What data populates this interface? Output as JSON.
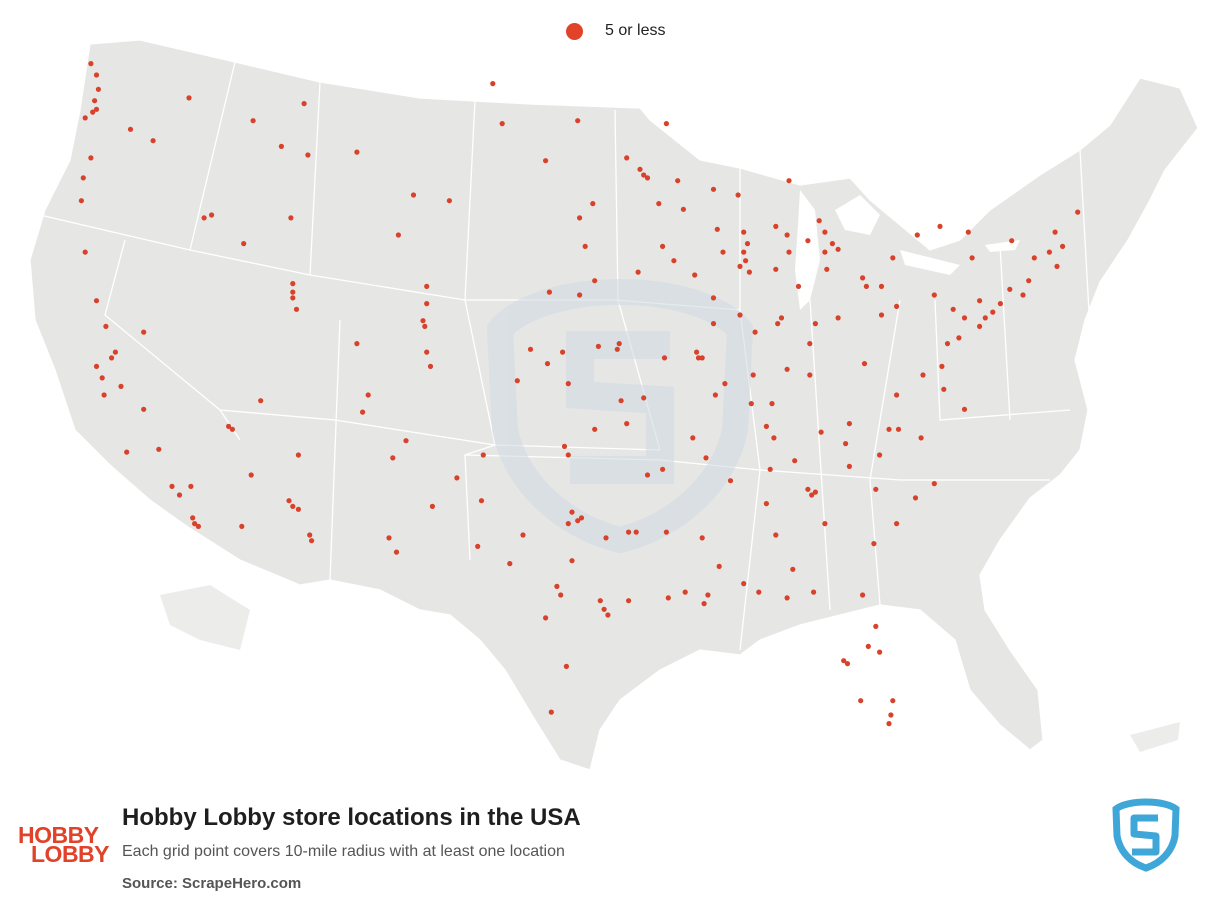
{
  "legend": {
    "label": "5 or less",
    "color": "#e0432a"
  },
  "title": "Hobby Lobby store locations in the USA",
  "subtitle": "Each grid point covers 10-mile radius with at least one location",
  "source": {
    "label": "Source:",
    "value": "ScrapeHero.com"
  },
  "logo": {
    "line1": "HOBBY",
    "line2": "LOBBY",
    "color": "#e0432a"
  },
  "colors": {
    "land": "#e6e6e5",
    "border": "#ffffff",
    "dot": "#d8412a",
    "watermark": "#cfdbe3",
    "brand_blue": "#3fa6d8"
  },
  "map_markers": [
    {
      "lon": -122.6,
      "lat": 48.9
    },
    {
      "lon": -122.3,
      "lat": 48.5
    },
    {
      "lon": -122.2,
      "lat": 48.0
    },
    {
      "lon": -122.4,
      "lat": 47.6
    },
    {
      "lon": -122.3,
      "lat": 47.3
    },
    {
      "lon": -122.5,
      "lat": 47.2
    },
    {
      "lon": -122.9,
      "lat": 47.0
    },
    {
      "lon": -122.6,
      "lat": 45.6
    },
    {
      "lon": -123.0,
      "lat": 44.9
    },
    {
      "lon": -123.1,
      "lat": 44.1
    },
    {
      "lon": -122.9,
      "lat": 42.3
    },
    {
      "lon": -117.4,
      "lat": 47.7
    },
    {
      "lon": -119.3,
      "lat": 46.2
    },
    {
      "lon": -120.5,
      "lat": 46.6
    },
    {
      "lon": -116.2,
      "lat": 43.6
    },
    {
      "lon": -116.6,
      "lat": 43.5
    },
    {
      "lon": -112.0,
      "lat": 43.5
    },
    {
      "lon": -114.5,
      "lat": 42.6
    },
    {
      "lon": -111.9,
      "lat": 41.2
    },
    {
      "lon": -111.9,
      "lat": 40.7
    },
    {
      "lon": -111.7,
      "lat": 40.3
    },
    {
      "lon": -111.9,
      "lat": 40.9
    },
    {
      "lon": -113.6,
      "lat": 37.1
    },
    {
      "lon": -114.0,
      "lat": 46.9
    },
    {
      "lon": -111.1,
      "lat": 45.7
    },
    {
      "lon": -108.5,
      "lat": 45.8
    },
    {
      "lon": -112.5,
      "lat": 46.0
    },
    {
      "lon": -111.3,
      "lat": 47.5
    },
    {
      "lon": -100.8,
      "lat": 46.8
    },
    {
      "lon": -96.8,
      "lat": 46.9
    },
    {
      "lon": -101.3,
      "lat": 48.2
    },
    {
      "lon": -103.6,
      "lat": 44.1
    },
    {
      "lon": -96.7,
      "lat": 43.5
    },
    {
      "lon": -98.5,
      "lat": 45.5
    },
    {
      "lon": -104.8,
      "lat": 41.1
    },
    {
      "lon": -106.3,
      "lat": 42.9
    },
    {
      "lon": -105.5,
      "lat": 44.3
    },
    {
      "lon": -104.8,
      "lat": 40.5
    },
    {
      "lon": -104.9,
      "lat": 39.7
    },
    {
      "lon": -105.0,
      "lat": 39.9
    },
    {
      "lon": -104.8,
      "lat": 38.8
    },
    {
      "lon": -104.6,
      "lat": 38.3
    },
    {
      "lon": -108.5,
      "lat": 39.1
    },
    {
      "lon": -107.9,
      "lat": 37.3
    },
    {
      "lon": -106.6,
      "lat": 35.1
    },
    {
      "lon": -106.8,
      "lat": 32.3
    },
    {
      "lon": -103.2,
      "lat": 34.4
    },
    {
      "lon": -108.2,
      "lat": 36.7
    },
    {
      "lon": -105.9,
      "lat": 35.7
    },
    {
      "lon": -104.5,
      "lat": 33.4
    },
    {
      "lon": -111.9,
      "lat": 33.4
    },
    {
      "lon": -112.1,
      "lat": 33.6
    },
    {
      "lon": -111.6,
      "lat": 33.3
    },
    {
      "lon": -110.9,
      "lat": 32.2
    },
    {
      "lon": -111.0,
      "lat": 32.4
    },
    {
      "lon": -111.6,
      "lat": 35.2
    },
    {
      "lon": -114.6,
      "lat": 32.7
    },
    {
      "lon": -114.1,
      "lat": 34.5
    },
    {
      "lon": -115.1,
      "lat": 36.1
    },
    {
      "lon": -115.3,
      "lat": 36.2
    },
    {
      "lon": -119.8,
      "lat": 39.5
    },
    {
      "lon": -121.5,
      "lat": 38.6
    },
    {
      "lon": -121.3,
      "lat": 38.8
    },
    {
      "lon": -122.0,
      "lat": 37.9
    },
    {
      "lon": -121.9,
      "lat": 37.3
    },
    {
      "lon": -122.3,
      "lat": 38.3
    },
    {
      "lon": -121.0,
      "lat": 37.6
    },
    {
      "lon": -119.8,
      "lat": 36.8
    },
    {
      "lon": -119.0,
      "lat": 35.4
    },
    {
      "lon": -118.3,
      "lat": 34.1
    },
    {
      "lon": -117.9,
      "lat": 33.8
    },
    {
      "lon": -117.3,
      "lat": 34.1
    },
    {
      "lon": -117.2,
      "lat": 33.0
    },
    {
      "lon": -117.1,
      "lat": 32.8
    },
    {
      "lon": -116.9,
      "lat": 32.7
    },
    {
      "lon": -122.3,
      "lat": 40.6
    },
    {
      "lon": -121.8,
      "lat": 39.7
    },
    {
      "lon": -120.7,
      "lat": 35.3
    },
    {
      "lon": -97.5,
      "lat": 35.5
    },
    {
      "lon": -97.3,
      "lat": 35.2
    },
    {
      "lon": -95.9,
      "lat": 36.1
    },
    {
      "lon": -97.1,
      "lat": 33.2
    },
    {
      "lon": -96.8,
      "lat": 32.9
    },
    {
      "lon": -97.3,
      "lat": 32.8
    },
    {
      "lon": -96.6,
      "lat": 33.0
    },
    {
      "lon": -95.3,
      "lat": 32.3
    },
    {
      "lon": -94.1,
      "lat": 32.5
    },
    {
      "lon": -95.4,
      "lat": 29.8
    },
    {
      "lon": -95.6,
      "lat": 30.1
    },
    {
      "lon": -95.2,
      "lat": 29.6
    },
    {
      "lon": -94.1,
      "lat": 30.1
    },
    {
      "lon": -97.7,
      "lat": 30.3
    },
    {
      "lon": -97.9,
      "lat": 30.6
    },
    {
      "lon": -98.5,
      "lat": 29.5
    },
    {
      "lon": -97.4,
      "lat": 27.8
    },
    {
      "lon": -98.2,
      "lat": 26.2
    },
    {
      "lon": -101.9,
      "lat": 33.6
    },
    {
      "lon": -101.8,
      "lat": 35.2
    },
    {
      "lon": -99.7,
      "lat": 32.4
    },
    {
      "lon": -106.4,
      "lat": 31.8
    },
    {
      "lon": -102.1,
      "lat": 32.0
    },
    {
      "lon": -100.4,
      "lat": 31.4
    },
    {
      "lon": -97.1,
      "lat": 31.5
    },
    {
      "lon": -93.7,
      "lat": 32.5
    },
    {
      "lon": -92.0,
      "lat": 30.2
    },
    {
      "lon": -91.1,
      "lat": 30.4
    },
    {
      "lon": -90.1,
      "lat": 30.0
    },
    {
      "lon": -89.9,
      "lat": 30.3
    },
    {
      "lon": -92.1,
      "lat": 32.5
    },
    {
      "lon": -92.3,
      "lat": 34.7
    },
    {
      "lon": -94.2,
      "lat": 36.3
    },
    {
      "lon": -90.7,
      "lat": 35.8
    },
    {
      "lon": -93.1,
      "lat": 34.5
    },
    {
      "lon": -90.2,
      "lat": 32.3
    },
    {
      "lon": -89.3,
      "lat": 31.3
    },
    {
      "lon": -88.7,
      "lat": 34.3
    },
    {
      "lon": -88.0,
      "lat": 30.7
    },
    {
      "lon": -86.8,
      "lat": 33.5
    },
    {
      "lon": -86.6,
      "lat": 34.7
    },
    {
      "lon": -86.3,
      "lat": 32.4
    },
    {
      "lon": -85.4,
      "lat": 31.2
    },
    {
      "lon": -84.4,
      "lat": 33.8
    },
    {
      "lon": -84.2,
      "lat": 33.9
    },
    {
      "lon": -84.6,
      "lat": 34.0
    },
    {
      "lon": -83.7,
      "lat": 32.8
    },
    {
      "lon": -81.1,
      "lat": 32.1
    },
    {
      "lon": -84.3,
      "lat": 30.4
    },
    {
      "lon": -81.7,
      "lat": 30.3
    },
    {
      "lon": -81.4,
      "lat": 28.5
    },
    {
      "lon": -82.5,
      "lat": 27.9
    },
    {
      "lon": -82.7,
      "lat": 28.0
    },
    {
      "lon": -81.8,
      "lat": 26.6
    },
    {
      "lon": -80.2,
      "lat": 26.1
    },
    {
      "lon": -80.1,
      "lat": 26.6
    },
    {
      "lon": -80.3,
      "lat": 25.8
    },
    {
      "lon": -81.0,
      "lat": 29.2
    },
    {
      "lon": -80.8,
      "lat": 28.3
    },
    {
      "lon": -87.2,
      "lat": 30.4
    },
    {
      "lon": -85.7,
      "lat": 30.2
    },
    {
      "lon": -90.0,
      "lat": 35.1
    },
    {
      "lon": -86.8,
      "lat": 36.2
    },
    {
      "lon": -86.4,
      "lat": 35.8
    },
    {
      "lon": -85.3,
      "lat": 35.0
    },
    {
      "lon": -83.9,
      "lat": 36.0
    },
    {
      "lon": -82.4,
      "lat": 36.3
    },
    {
      "lon": -85.7,
      "lat": 38.2
    },
    {
      "lon": -84.5,
      "lat": 38.0
    },
    {
      "lon": -86.5,
      "lat": 37.0
    },
    {
      "lon": -87.6,
      "lat": 37.0
    },
    {
      "lon": -80.8,
      "lat": 35.2
    },
    {
      "lon": -80.3,
      "lat": 36.1
    },
    {
      "lon": -79.8,
      "lat": 36.1
    },
    {
      "lon": -78.6,
      "lat": 35.8
    },
    {
      "lon": -77.9,
      "lat": 34.2
    },
    {
      "lon": -82.6,
      "lat": 35.6
    },
    {
      "lon": -81.0,
      "lat": 34.0
    },
    {
      "lon": -82.4,
      "lat": 34.8
    },
    {
      "lon": -79.9,
      "lat": 32.8
    },
    {
      "lon": -78.9,
      "lat": 33.7
    },
    {
      "lon": -77.4,
      "lat": 37.5
    },
    {
      "lon": -76.3,
      "lat": 36.8
    },
    {
      "lon": -79.9,
      "lat": 37.3
    },
    {
      "lon": -77.5,
      "lat": 38.3
    },
    {
      "lon": -78.5,
      "lat": 38.0
    },
    {
      "lon": -81.6,
      "lat": 38.4
    },
    {
      "lon": -80.7,
      "lat": 40.1
    },
    {
      "lon": -79.9,
      "lat": 40.4
    },
    {
      "lon": -77.9,
      "lat": 40.8
    },
    {
      "lon": -76.9,
      "lat": 40.3
    },
    {
      "lon": -75.5,
      "lat": 40.6
    },
    {
      "lon": -75.2,
      "lat": 40.0
    },
    {
      "lon": -76.3,
      "lat": 40.0
    },
    {
      "lon": -80.1,
      "lat": 42.1
    },
    {
      "lon": -76.6,
      "lat": 39.3
    },
    {
      "lon": -77.2,
      "lat": 39.1
    },
    {
      "lon": -75.5,
      "lat": 39.7
    },
    {
      "lon": -74.4,
      "lat": 40.5
    },
    {
      "lon": -74.8,
      "lat": 40.2
    },
    {
      "lon": -73.9,
      "lat": 41.0
    },
    {
      "lon": -73.2,
      "lat": 40.8
    },
    {
      "lon": -72.9,
      "lat": 41.3
    },
    {
      "lon": -73.8,
      "lat": 42.7
    },
    {
      "lon": -76.1,
      "lat": 43.0
    },
    {
      "lon": -77.6,
      "lat": 43.2
    },
    {
      "lon": -78.8,
      "lat": 42.9
    },
    {
      "lon": -75.9,
      "lat": 42.1
    },
    {
      "lon": -71.8,
      "lat": 42.3
    },
    {
      "lon": -71.1,
      "lat": 42.5
    },
    {
      "lon": -71.5,
      "lat": 43.0
    },
    {
      "lon": -70.3,
      "lat": 43.7
    },
    {
      "lon": -72.6,
      "lat": 42.1
    },
    {
      "lon": -71.4,
      "lat": 41.8
    },
    {
      "lon": -81.7,
      "lat": 41.4
    },
    {
      "lon": -81.5,
      "lat": 41.1
    },
    {
      "lon": -83.0,
      "lat": 40.0
    },
    {
      "lon": -84.2,
      "lat": 39.8
    },
    {
      "lon": -84.5,
      "lat": 39.1
    },
    {
      "lon": -83.6,
      "lat": 41.7
    },
    {
      "lon": -80.7,
      "lat": 41.1
    },
    {
      "lon": -86.2,
      "lat": 39.8
    },
    {
      "lon": -86.0,
      "lat": 40.0
    },
    {
      "lon": -85.1,
      "lat": 41.1
    },
    {
      "lon": -86.3,
      "lat": 41.7
    },
    {
      "lon": -87.5,
      "lat": 38.0
    },
    {
      "lon": -87.4,
      "lat": 39.5
    },
    {
      "lon": -83.0,
      "lat": 42.4
    },
    {
      "lon": -83.3,
      "lat": 42.6
    },
    {
      "lon": -83.7,
      "lat": 42.3
    },
    {
      "lon": -84.6,
      "lat": 42.7
    },
    {
      "lon": -85.7,
      "lat": 42.9
    },
    {
      "lon": -85.6,
      "lat": 42.3
    },
    {
      "lon": -83.7,
      "lat": 43.0
    },
    {
      "lon": -84.0,
      "lat": 43.4
    },
    {
      "lon": -85.6,
      "lat": 44.8
    },
    {
      "lon": -86.3,
      "lat": 43.2
    },
    {
      "lon": -87.9,
      "lat": 42.0
    },
    {
      "lon": -88.2,
      "lat": 41.8
    },
    {
      "lon": -87.7,
      "lat": 41.6
    },
    {
      "lon": -88.0,
      "lat": 42.3
    },
    {
      "lon": -89.1,
      "lat": 42.3
    },
    {
      "lon": -89.6,
      "lat": 40.7
    },
    {
      "lon": -88.2,
      "lat": 40.1
    },
    {
      "lon": -89.6,
      "lat": 39.8
    },
    {
      "lon": -90.2,
      "lat": 38.6
    },
    {
      "lon": -89.0,
      "lat": 37.7
    },
    {
      "lon": -90.6,
      "lat": 41.5
    },
    {
      "lon": -88.0,
      "lat": 43.0
    },
    {
      "lon": -88.3,
      "lat": 44.3
    },
    {
      "lon": -89.4,
      "lat": 43.1
    },
    {
      "lon": -87.8,
      "lat": 42.6
    },
    {
      "lon": -91.5,
      "lat": 44.8
    },
    {
      "lon": -89.6,
      "lat": 44.5
    },
    {
      "lon": -91.2,
      "lat": 43.8
    },
    {
      "lon": -93.3,
      "lat": 45.0
    },
    {
      "lon": -93.1,
      "lat": 44.9
    },
    {
      "lon": -93.5,
      "lat": 45.2
    },
    {
      "lon": -92.5,
      "lat": 44.0
    },
    {
      "lon": -94.2,
      "lat": 45.6
    },
    {
      "lon": -92.1,
      "lat": 46.8
    },
    {
      "lon": -96.0,
      "lat": 44.0
    },
    {
      "lon": -93.6,
      "lat": 41.6
    },
    {
      "lon": -91.7,
      "lat": 42.0
    },
    {
      "lon": -92.3,
      "lat": 42.5
    },
    {
      "lon": -96.4,
      "lat": 42.5
    },
    {
      "lon": -95.9,
      "lat": 41.3
    },
    {
      "lon": -96.7,
      "lat": 40.8
    },
    {
      "lon": -98.3,
      "lat": 40.9
    },
    {
      "lon": -94.6,
      "lat": 39.1
    },
    {
      "lon": -94.7,
      "lat": 38.9
    },
    {
      "lon": -95.7,
      "lat": 39.0
    },
    {
      "lon": -97.3,
      "lat": 37.7
    },
    {
      "lon": -97.6,
      "lat": 38.8
    },
    {
      "lon": -98.4,
      "lat": 38.4
    },
    {
      "lon": -99.3,
      "lat": 38.9
    },
    {
      "lon": -100.0,
      "lat": 37.8
    },
    {
      "lon": -93.3,
      "lat": 37.2
    },
    {
      "lon": -92.2,
      "lat": 38.6
    },
    {
      "lon": -94.5,
      "lat": 37.1
    },
    {
      "lon": -90.5,
      "lat": 38.8
    },
    {
      "lon": -90.4,
      "lat": 38.6
    },
    {
      "lon": -89.5,
      "lat": 37.3
    }
  ]
}
